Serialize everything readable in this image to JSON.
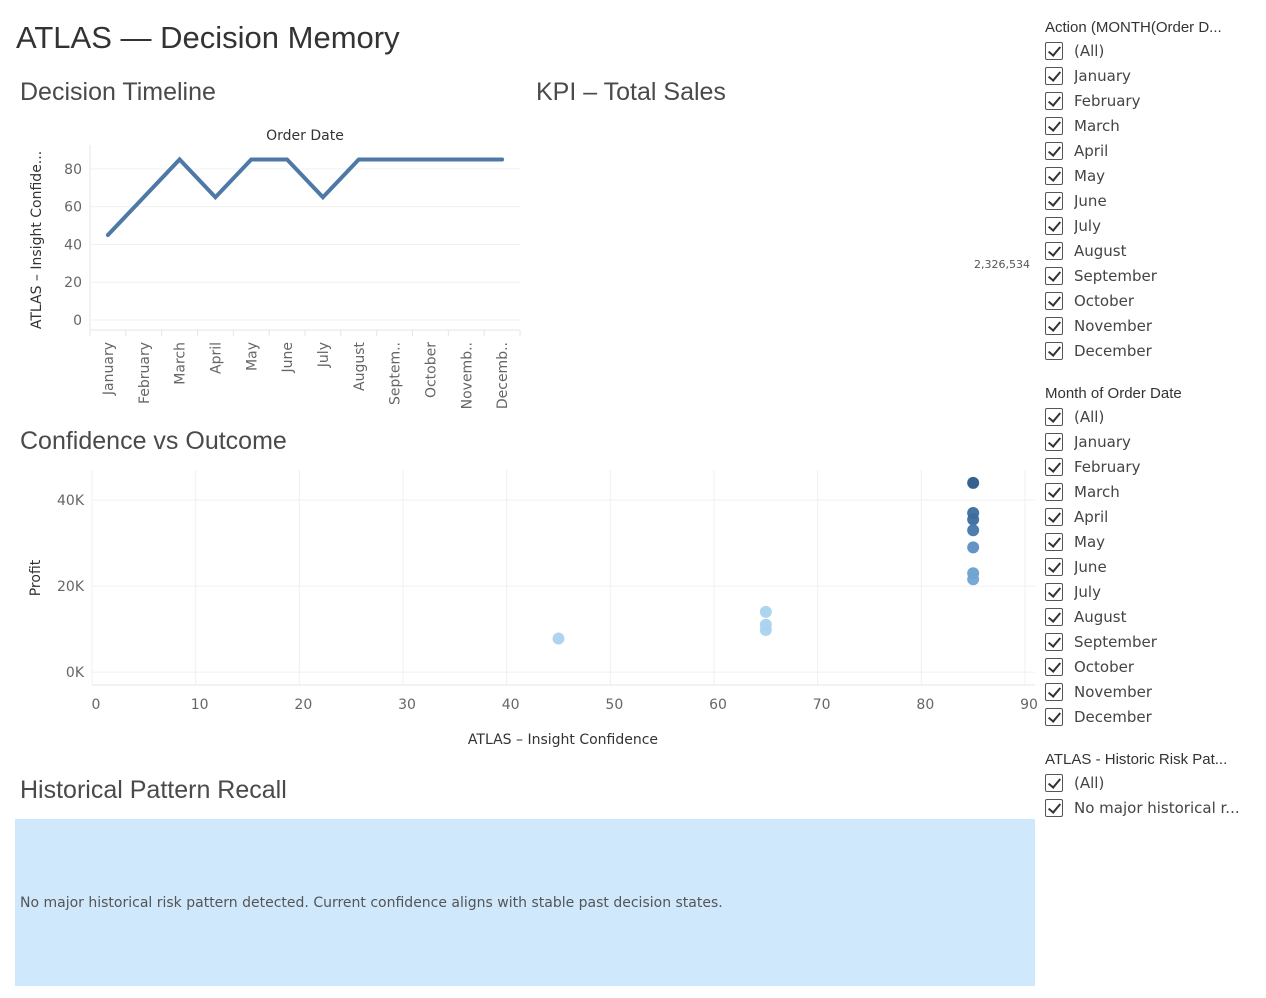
{
  "page": {
    "title": "ATLAS — Decision Memory"
  },
  "sheets": {
    "timeline_title": "Decision Timeline",
    "kpi_title": "KPI – Total Sales",
    "confidence_title": "Confidence vs Outcome",
    "history_title": "Historical Pattern Recall"
  },
  "kpi": {
    "total_sales": "2,326,534"
  },
  "history": {
    "text": "No major historical risk pattern detected. Current confidence aligns with stable past decision states."
  },
  "chart_data": [
    {
      "type": "line",
      "title": "Order Date",
      "xlabel": "Order Date",
      "ylabel": "ATLAS – Insight Confide...",
      "categories": [
        "January",
        "February",
        "March",
        "April",
        "May",
        "June",
        "July",
        "August",
        "Septem..",
        "October",
        "Novemb..",
        "Decemb.."
      ],
      "series": [
        {
          "values": [
            45,
            65,
            85,
            65,
            85,
            85,
            65,
            85,
            85,
            85,
            85,
            85
          ]
        }
      ],
      "yticks": [
        0,
        20,
        40,
        60,
        80
      ],
      "ylim": [
        0,
        90
      ],
      "grid": true,
      "color": "#4e79a7"
    },
    {
      "type": "scatter",
      "xlabel": "ATLAS – Insight Confidence",
      "ylabel": "Profit",
      "xticks": [
        0,
        10,
        20,
        30,
        40,
        50,
        60,
        70,
        80,
        90
      ],
      "yticks": [
        {
          "value": 0,
          "label": "0K"
        },
        {
          "value": 20000,
          "label": "20K"
        },
        {
          "value": 40000,
          "label": "40K"
        }
      ],
      "xlim": [
        0,
        90
      ],
      "ylim": [
        -3000,
        47000
      ],
      "grid": true,
      "points": [
        {
          "x": 45,
          "y": 7800,
          "color": "#a9d3ee"
        },
        {
          "x": 65,
          "y": 14000,
          "color": "#a9d3ee"
        },
        {
          "x": 65,
          "y": 11000,
          "color": "#a9d3ee"
        },
        {
          "x": 65,
          "y": 9800,
          "color": "#a9d3ee"
        },
        {
          "x": 85,
          "y": 44000,
          "color": "#2a5989"
        },
        {
          "x": 85,
          "y": 37000,
          "color": "#3a6b9f"
        },
        {
          "x": 85,
          "y": 35500,
          "color": "#3a6b9f"
        },
        {
          "x": 85,
          "y": 33000,
          "color": "#4577aa"
        },
        {
          "x": 85,
          "y": 29000,
          "color": "#5a8fc2"
        },
        {
          "x": 85,
          "y": 23000,
          "color": "#6aa0d0"
        },
        {
          "x": 85,
          "y": 21600,
          "color": "#6fa4d3"
        }
      ]
    }
  ],
  "filters": [
    {
      "title": "Action (MONTH(Order D...",
      "items": [
        "(All)",
        "January",
        "February",
        "March",
        "April",
        "May",
        "June",
        "July",
        "August",
        "September",
        "October",
        "November",
        "December"
      ]
    },
    {
      "title": "Month of Order Date",
      "items": [
        "(All)",
        "January",
        "February",
        "March",
        "April",
        "May",
        "June",
        "July",
        "August",
        "September",
        "October",
        "November",
        "December"
      ]
    },
    {
      "title": "ATLAS - Historic Risk Pat...",
      "items": [
        "(All)",
        "No major historical r..."
      ]
    }
  ]
}
